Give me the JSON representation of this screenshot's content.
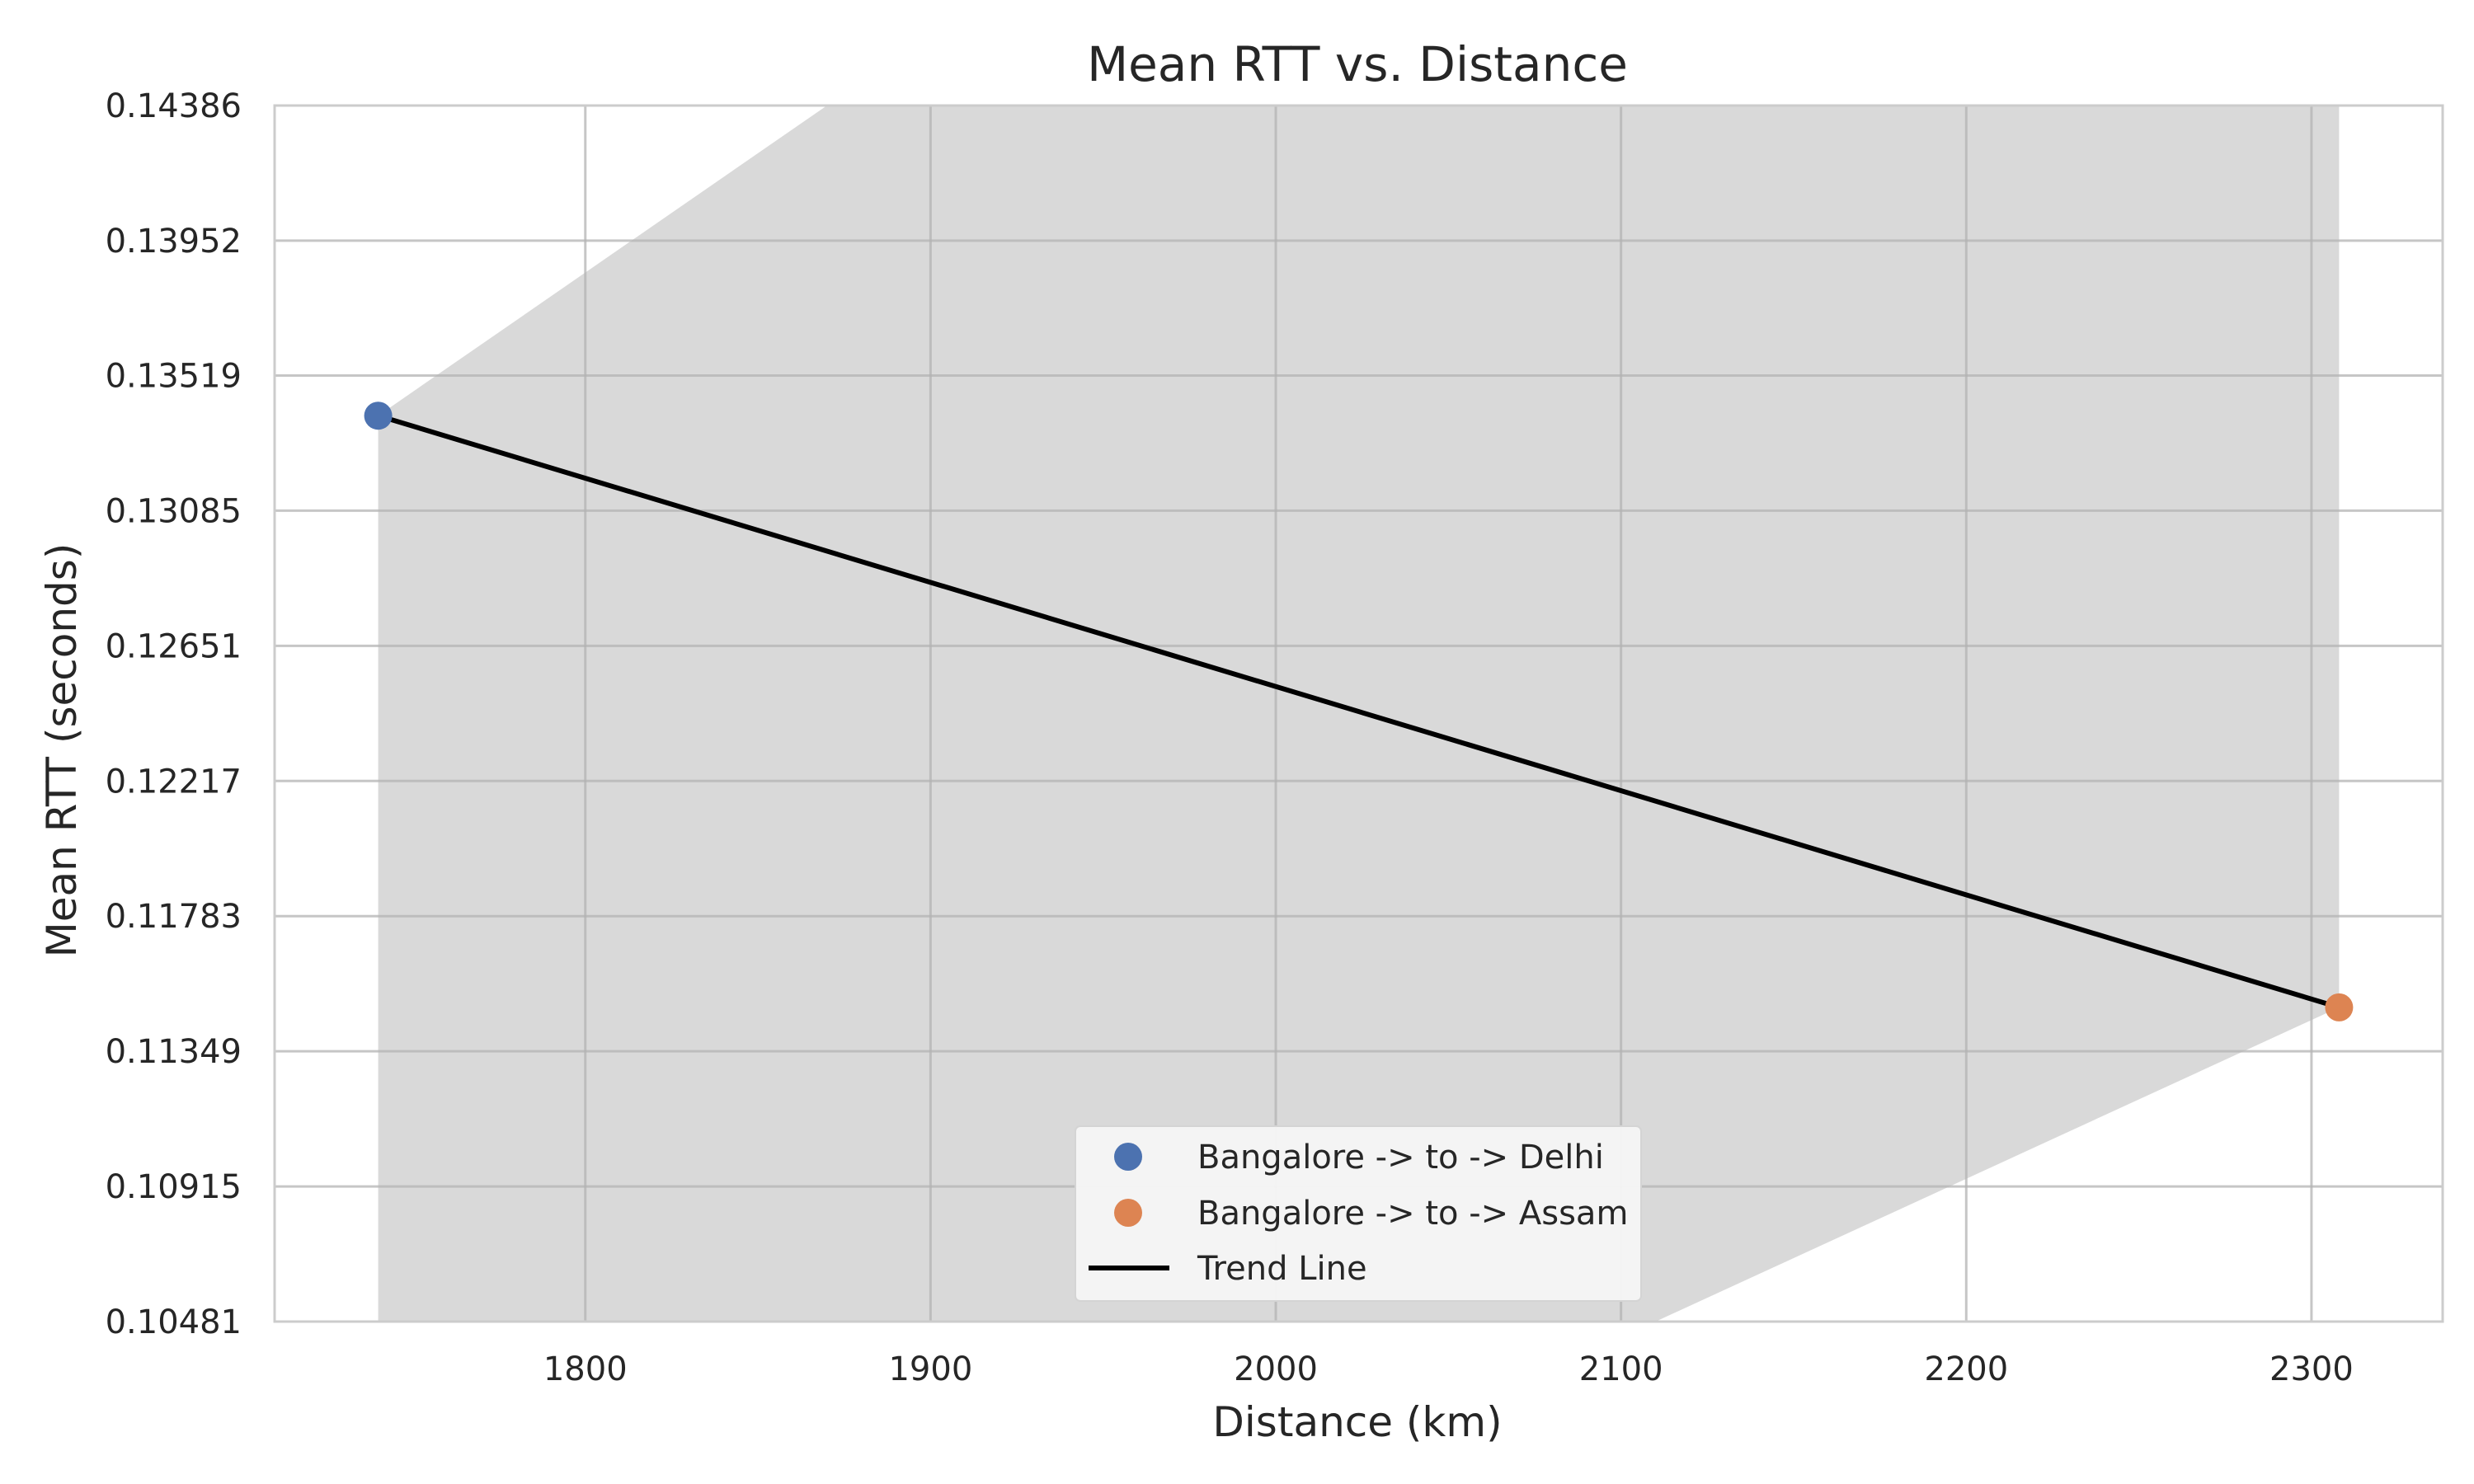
{
  "chart_data": {
    "type": "scatter",
    "title": "Mean RTT vs. Distance",
    "xlabel": "Distance (km)",
    "ylabel": "Mean RTT (seconds)",
    "xlim": [
      1710,
      2338
    ],
    "ylim": [
      0.10481,
      0.14386
    ],
    "x_ticks": [
      1800,
      1900,
      2000,
      2100,
      2200,
      2300
    ],
    "x_tick_labels": [
      "1800",
      "1900",
      "2000",
      "2100",
      "2200",
      "2300"
    ],
    "y_ticks": [
      0.10481,
      0.10915,
      0.11349,
      0.11783,
      0.12217,
      0.12651,
      0.13085,
      0.13519,
      0.13952,
      0.14386
    ],
    "y_tick_labels": [
      "0.10481",
      "0.10915",
      "0.11349",
      "0.11783",
      "0.12217",
      "0.12651",
      "0.13085",
      "0.13519",
      "0.13952",
      "0.14386"
    ],
    "grid": true,
    "legend_position": "bottom-center",
    "series": [
      {
        "name": "Bangalore -> to -> Delhi",
        "x": [
          1740
        ],
        "y": [
          0.1339
        ],
        "color": "#4c72b0"
      },
      {
        "name": "Bangalore -> to -> Assam",
        "x": [
          2308
        ],
        "y": [
          0.1149
        ],
        "color": "#dd8452"
      }
    ],
    "trend_line": {
      "name": "Trend Line",
      "x": [
        1740,
        2308
      ],
      "y": [
        0.1339,
        0.1149
      ],
      "color": "#000000"
    },
    "confidence_band": {
      "x": [
        1740,
        1870,
        2110,
        2308
      ],
      "upper": [
        0.1339,
        0.14386,
        0.14386,
        0.14386
      ],
      "lower": [
        0.10481,
        0.10481,
        0.10481,
        0.1149
      ],
      "color": "#d9d9d9"
    }
  }
}
